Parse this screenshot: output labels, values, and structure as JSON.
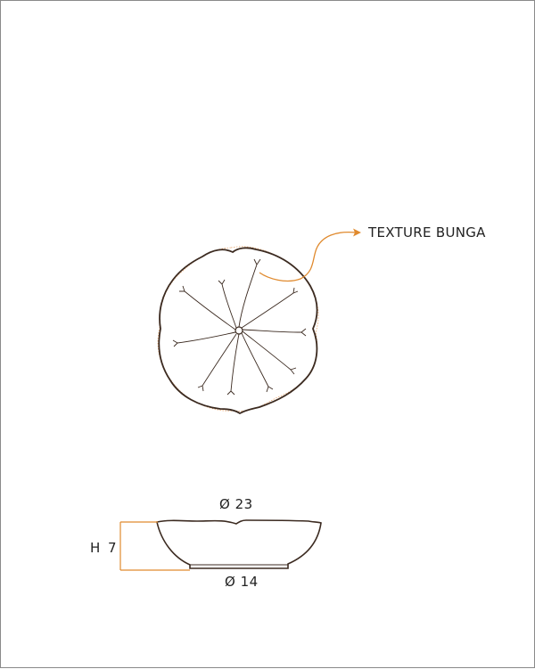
{
  "callout": {
    "label": "TEXTURE BUNGA"
  },
  "dimensions": {
    "top_diameter": "Ø 23",
    "base_diameter": "Ø 14",
    "height": "H 7"
  },
  "colors": {
    "outline": "#3b2a20",
    "accent": "#e08a2e",
    "frame": "#8a8a8a"
  }
}
